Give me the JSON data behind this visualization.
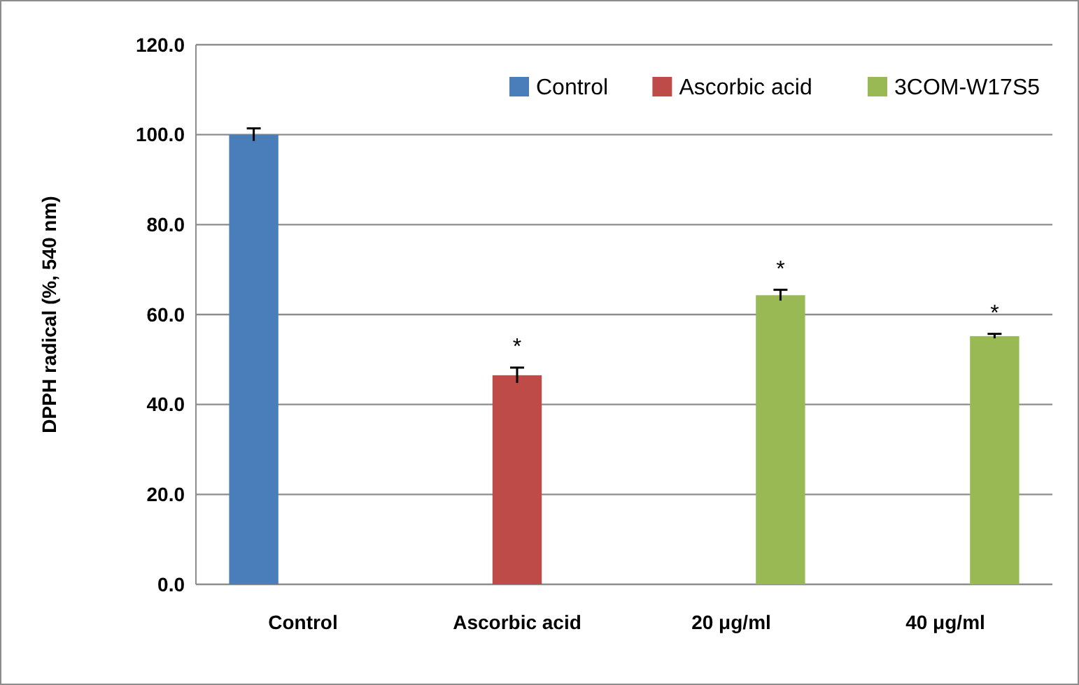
{
  "chart_data": {
    "type": "bar",
    "ylabel": "DPPH radical (%, 540 nm)",
    "categories": [
      "Control",
      "Ascorbic acid",
      "20 μg/ml",
      "40 μg/ml"
    ],
    "series": [
      {
        "name": "Control",
        "color": "#4a7ebb",
        "values": [
          100,
          null,
          null,
          null
        ],
        "errors": [
          1.4,
          null,
          null,
          null
        ]
      },
      {
        "name": "Ascorbic acid",
        "color": "#be4b48",
        "values": [
          null,
          46.5,
          null,
          null
        ],
        "errors": [
          null,
          1.7,
          null,
          null
        ],
        "value_labels": [
          null,
          "*",
          null,
          null
        ]
      },
      {
        "name": "3COM-W17S5",
        "color": "#98b954",
        "values": [
          null,
          null,
          64.3,
          55.2
        ],
        "errors": [
          null,
          null,
          1.2,
          0.5
        ],
        "value_labels": [
          null,
          null,
          "*",
          "*"
        ]
      }
    ],
    "ylim": [
      0,
      120
    ],
    "yticks": [
      {
        "value": 0,
        "label": "0.0"
      },
      {
        "value": 20,
        "label": "20.0"
      },
      {
        "value": 40,
        "label": "40.0"
      },
      {
        "value": 60,
        "label": "60.0"
      },
      {
        "value": 80,
        "label": "80.0"
      },
      {
        "value": 100,
        "label": "100.0"
      },
      {
        "value": 120,
        "label": "120.0"
      }
    ],
    "grid": "y",
    "legend": "top right"
  }
}
